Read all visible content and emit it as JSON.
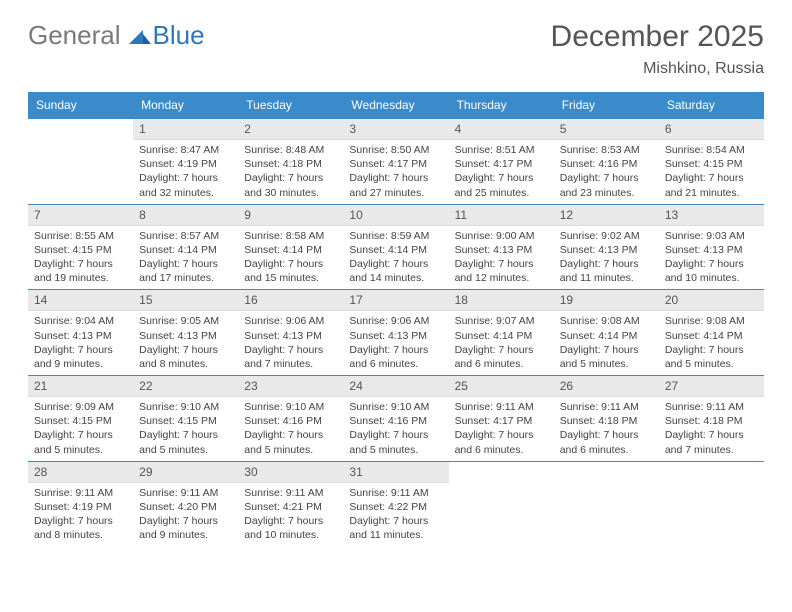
{
  "logo": {
    "part1": "General",
    "part2": "Blue"
  },
  "title": "December 2025",
  "location": "Mishkino, Russia",
  "colors": {
    "header_bg": "#3b8bca",
    "header_text": "#ffffff",
    "daynum_bg": "#e9e9e9",
    "border": "#3b8bca",
    "logo_gray": "#7a7a7a",
    "logo_blue": "#2f77bb"
  },
  "weekdays": [
    "Sunday",
    "Monday",
    "Tuesday",
    "Wednesday",
    "Thursday",
    "Friday",
    "Saturday"
  ],
  "weeks": [
    [
      null,
      {
        "n": "1",
        "sr": "Sunrise: 8:47 AM",
        "ss": "Sunset: 4:19 PM",
        "dl": "Daylight: 7 hours and 32 minutes."
      },
      {
        "n": "2",
        "sr": "Sunrise: 8:48 AM",
        "ss": "Sunset: 4:18 PM",
        "dl": "Daylight: 7 hours and 30 minutes."
      },
      {
        "n": "3",
        "sr": "Sunrise: 8:50 AM",
        "ss": "Sunset: 4:17 PM",
        "dl": "Daylight: 7 hours and 27 minutes."
      },
      {
        "n": "4",
        "sr": "Sunrise: 8:51 AM",
        "ss": "Sunset: 4:17 PM",
        "dl": "Daylight: 7 hours and 25 minutes."
      },
      {
        "n": "5",
        "sr": "Sunrise: 8:53 AM",
        "ss": "Sunset: 4:16 PM",
        "dl": "Daylight: 7 hours and 23 minutes."
      },
      {
        "n": "6",
        "sr": "Sunrise: 8:54 AM",
        "ss": "Sunset: 4:15 PM",
        "dl": "Daylight: 7 hours and 21 minutes."
      }
    ],
    [
      {
        "n": "7",
        "sr": "Sunrise: 8:55 AM",
        "ss": "Sunset: 4:15 PM",
        "dl": "Daylight: 7 hours and 19 minutes."
      },
      {
        "n": "8",
        "sr": "Sunrise: 8:57 AM",
        "ss": "Sunset: 4:14 PM",
        "dl": "Daylight: 7 hours and 17 minutes."
      },
      {
        "n": "9",
        "sr": "Sunrise: 8:58 AM",
        "ss": "Sunset: 4:14 PM",
        "dl": "Daylight: 7 hours and 15 minutes."
      },
      {
        "n": "10",
        "sr": "Sunrise: 8:59 AM",
        "ss": "Sunset: 4:14 PM",
        "dl": "Daylight: 7 hours and 14 minutes."
      },
      {
        "n": "11",
        "sr": "Sunrise: 9:00 AM",
        "ss": "Sunset: 4:13 PM",
        "dl": "Daylight: 7 hours and 12 minutes."
      },
      {
        "n": "12",
        "sr": "Sunrise: 9:02 AM",
        "ss": "Sunset: 4:13 PM",
        "dl": "Daylight: 7 hours and 11 minutes."
      },
      {
        "n": "13",
        "sr": "Sunrise: 9:03 AM",
        "ss": "Sunset: 4:13 PM",
        "dl": "Daylight: 7 hours and 10 minutes."
      }
    ],
    [
      {
        "n": "14",
        "sr": "Sunrise: 9:04 AM",
        "ss": "Sunset: 4:13 PM",
        "dl": "Daylight: 7 hours and 9 minutes."
      },
      {
        "n": "15",
        "sr": "Sunrise: 9:05 AM",
        "ss": "Sunset: 4:13 PM",
        "dl": "Daylight: 7 hours and 8 minutes."
      },
      {
        "n": "16",
        "sr": "Sunrise: 9:06 AM",
        "ss": "Sunset: 4:13 PM",
        "dl": "Daylight: 7 hours and 7 minutes."
      },
      {
        "n": "17",
        "sr": "Sunrise: 9:06 AM",
        "ss": "Sunset: 4:13 PM",
        "dl": "Daylight: 7 hours and 6 minutes."
      },
      {
        "n": "18",
        "sr": "Sunrise: 9:07 AM",
        "ss": "Sunset: 4:14 PM",
        "dl": "Daylight: 7 hours and 6 minutes."
      },
      {
        "n": "19",
        "sr": "Sunrise: 9:08 AM",
        "ss": "Sunset: 4:14 PM",
        "dl": "Daylight: 7 hours and 5 minutes."
      },
      {
        "n": "20",
        "sr": "Sunrise: 9:08 AM",
        "ss": "Sunset: 4:14 PM",
        "dl": "Daylight: 7 hours and 5 minutes."
      }
    ],
    [
      {
        "n": "21",
        "sr": "Sunrise: 9:09 AM",
        "ss": "Sunset: 4:15 PM",
        "dl": "Daylight: 7 hours and 5 minutes."
      },
      {
        "n": "22",
        "sr": "Sunrise: 9:10 AM",
        "ss": "Sunset: 4:15 PM",
        "dl": "Daylight: 7 hours and 5 minutes."
      },
      {
        "n": "23",
        "sr": "Sunrise: 9:10 AM",
        "ss": "Sunset: 4:16 PM",
        "dl": "Daylight: 7 hours and 5 minutes."
      },
      {
        "n": "24",
        "sr": "Sunrise: 9:10 AM",
        "ss": "Sunset: 4:16 PM",
        "dl": "Daylight: 7 hours and 5 minutes."
      },
      {
        "n": "25",
        "sr": "Sunrise: 9:11 AM",
        "ss": "Sunset: 4:17 PM",
        "dl": "Daylight: 7 hours and 6 minutes."
      },
      {
        "n": "26",
        "sr": "Sunrise: 9:11 AM",
        "ss": "Sunset: 4:18 PM",
        "dl": "Daylight: 7 hours and 6 minutes."
      },
      {
        "n": "27",
        "sr": "Sunrise: 9:11 AM",
        "ss": "Sunset: 4:18 PM",
        "dl": "Daylight: 7 hours and 7 minutes."
      }
    ],
    [
      {
        "n": "28",
        "sr": "Sunrise: 9:11 AM",
        "ss": "Sunset: 4:19 PM",
        "dl": "Daylight: 7 hours and 8 minutes."
      },
      {
        "n": "29",
        "sr": "Sunrise: 9:11 AM",
        "ss": "Sunset: 4:20 PM",
        "dl": "Daylight: 7 hours and 9 minutes."
      },
      {
        "n": "30",
        "sr": "Sunrise: 9:11 AM",
        "ss": "Sunset: 4:21 PM",
        "dl": "Daylight: 7 hours and 10 minutes."
      },
      {
        "n": "31",
        "sr": "Sunrise: 9:11 AM",
        "ss": "Sunset: 4:22 PM",
        "dl": "Daylight: 7 hours and 11 minutes."
      },
      null,
      null,
      null
    ]
  ]
}
